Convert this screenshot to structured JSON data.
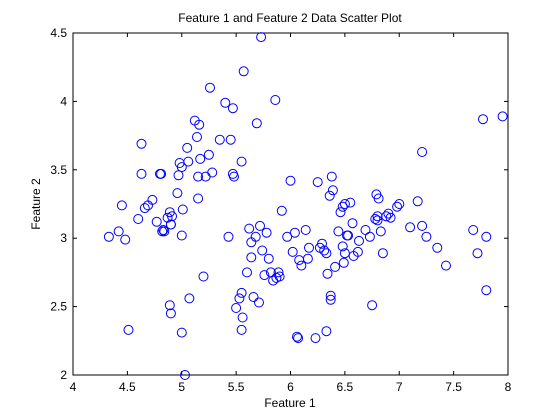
{
  "chart_data": {
    "type": "scatter",
    "title": "Feature 1 and Feature 2 Data Scatter Plot",
    "xlabel": "Feature 1",
    "ylabel": "Feature 2",
    "xlim": [
      4,
      8
    ],
    "ylim": [
      2,
      4.5
    ],
    "xticks": [
      "4",
      "4.5",
      "5",
      "5.5",
      "6",
      "6.5",
      "7",
      "7.5",
      "8"
    ],
    "yticks": [
      "2",
      "2.5",
      "3",
      "3.5",
      "4",
      "4.5"
    ],
    "grid": false,
    "marker": "circle-open",
    "marker_color": "#0000ff",
    "series": [
      {
        "points": [
          [
            4.33,
            3.01
          ],
          [
            4.42,
            3.05
          ],
          [
            4.45,
            3.24
          ],
          [
            4.48,
            2.99
          ],
          [
            4.51,
            2.33
          ],
          [
            4.6,
            3.14
          ],
          [
            4.63,
            3.69
          ],
          [
            4.63,
            3.47
          ],
          [
            4.66,
            3.22
          ],
          [
            4.69,
            3.24
          ],
          [
            4.73,
            3.28
          ],
          [
            4.77,
            3.12
          ],
          [
            4.8,
            3.47
          ],
          [
            4.81,
            3.47
          ],
          [
            4.82,
            3.05
          ],
          [
            4.83,
            3.06
          ],
          [
            4.84,
            3.05
          ],
          [
            4.87,
            3.15
          ],
          [
            4.89,
            3.19
          ],
          [
            4.9,
            3.1
          ],
          [
            4.9,
            3.1
          ],
          [
            4.91,
            3.16
          ],
          [
            4.89,
            2.51
          ],
          [
            4.9,
            2.45
          ],
          [
            4.96,
            3.33
          ],
          [
            4.97,
            3.46
          ],
          [
            4.98,
            3.55
          ],
          [
            5.0,
            3.52
          ],
          [
            5.01,
            3.21
          ],
          [
            5.0,
            3.02
          ],
          [
            5.0,
            2.31
          ],
          [
            5.05,
            3.66
          ],
          [
            5.06,
            3.56
          ],
          [
            5.03,
            2.0
          ],
          [
            5.07,
            2.56
          ],
          [
            5.12,
            3.86
          ],
          [
            5.14,
            3.74
          ],
          [
            5.15,
            3.45
          ],
          [
            5.15,
            3.29
          ],
          [
            5.16,
            3.83
          ],
          [
            5.17,
            3.58
          ],
          [
            5.2,
            2.72
          ],
          [
            5.22,
            3.45
          ],
          [
            5.25,
            3.61
          ],
          [
            5.26,
            4.1
          ],
          [
            5.28,
            3.48
          ],
          [
            5.35,
            3.72
          ],
          [
            5.4,
            3.99
          ],
          [
            5.43,
            3.01
          ],
          [
            5.45,
            3.72
          ],
          [
            5.47,
            3.47
          ],
          [
            5.47,
            3.95
          ],
          [
            5.48,
            3.45
          ],
          [
            5.5,
            2.49
          ],
          [
            5.53,
            2.56
          ],
          [
            5.55,
            3.56
          ],
          [
            5.55,
            2.33
          ],
          [
            5.56,
            2.42
          ],
          [
            5.57,
            4.22
          ],
          [
            5.55,
            2.6
          ],
          [
            5.6,
            2.75
          ],
          [
            5.62,
            3.07
          ],
          [
            5.64,
            2.86
          ],
          [
            5.64,
            2.97
          ],
          [
            5.66,
            2.57
          ],
          [
            5.68,
            3.01
          ],
          [
            5.69,
            3.84
          ],
          [
            5.71,
            2.53
          ],
          [
            5.73,
            4.47
          ],
          [
            5.72,
            3.09
          ],
          [
            5.74,
            2.91
          ],
          [
            5.76,
            2.73
          ],
          [
            5.78,
            3.04
          ],
          [
            5.8,
            2.85
          ],
          [
            5.82,
            2.75
          ],
          [
            5.84,
            2.69
          ],
          [
            5.87,
            2.71
          ],
          [
            5.86,
            4.01
          ],
          [
            5.89,
            2.75
          ],
          [
            5.9,
            2.72
          ],
          [
            5.92,
            3.2
          ],
          [
            5.97,
            3.01
          ],
          [
            6.0,
            3.42
          ],
          [
            6.02,
            2.9
          ],
          [
            6.04,
            3.04
          ],
          [
            6.06,
            2.28
          ],
          [
            6.07,
            2.27
          ],
          [
            6.08,
            2.84
          ],
          [
            6.1,
            2.8
          ],
          [
            6.14,
            3.06
          ],
          [
            6.16,
            2.85
          ],
          [
            6.17,
            2.93
          ],
          [
            6.23,
            2.27
          ],
          [
            6.25,
            3.41
          ],
          [
            6.27,
            2.93
          ],
          [
            6.29,
            2.96
          ],
          [
            6.31,
            2.91
          ],
          [
            6.33,
            2.89
          ],
          [
            6.33,
            2.32
          ],
          [
            6.34,
            2.74
          ],
          [
            6.37,
            2.58
          ],
          [
            6.36,
            3.31
          ],
          [
            6.38,
            3.45
          ],
          [
            6.37,
            2.55
          ],
          [
            6.39,
            3.35
          ],
          [
            6.41,
            2.79
          ],
          [
            6.44,
            3.05
          ],
          [
            6.46,
            3.19
          ],
          [
            6.48,
            3.23
          ],
          [
            6.48,
            2.94
          ],
          [
            6.49,
            2.82
          ],
          [
            6.5,
            2.89
          ],
          [
            6.5,
            3.25
          ],
          [
            6.52,
            3.02
          ],
          [
            6.53,
            3.02
          ],
          [
            6.55,
            3.26
          ],
          [
            6.57,
            3.11
          ],
          [
            6.58,
            2.87
          ],
          [
            6.62,
            2.9
          ],
          [
            6.63,
            2.98
          ],
          [
            6.69,
            3.06
          ],
          [
            6.73,
            3.01
          ],
          [
            6.75,
            2.51
          ],
          [
            6.78,
            3.14
          ],
          [
            6.79,
            3.32
          ],
          [
            6.8,
            3.16
          ],
          [
            6.8,
            3.13
          ],
          [
            6.81,
            3.29
          ],
          [
            6.83,
            3.05
          ],
          [
            6.85,
            2.89
          ],
          [
            6.88,
            3.16
          ],
          [
            6.9,
            3.18
          ],
          [
            6.92,
            3.15
          ],
          [
            6.98,
            3.23
          ],
          [
            7.0,
            3.25
          ],
          [
            7.1,
            3.08
          ],
          [
            7.17,
            3.27
          ],
          [
            7.21,
            3.63
          ],
          [
            7.21,
            3.09
          ],
          [
            7.25,
            3.01
          ],
          [
            7.35,
            2.93
          ],
          [
            7.43,
            2.8
          ],
          [
            7.68,
            3.06
          ],
          [
            7.72,
            2.89
          ],
          [
            7.77,
            3.87
          ],
          [
            7.8,
            3.01
          ],
          [
            7.8,
            2.62
          ],
          [
            7.95,
            3.89
          ]
        ]
      }
    ]
  }
}
